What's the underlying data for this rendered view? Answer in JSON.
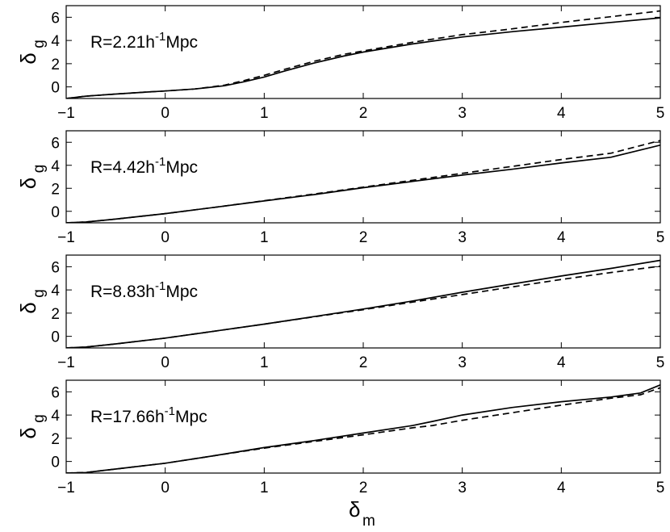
{
  "chart_data": {
    "type": "line",
    "xlabel": "δ_m",
    "panels": [
      {
        "annotation": "R=2.21h^{-1}Mpc",
        "ylabel": "δ_g",
        "xlim": [
          -1,
          5
        ],
        "ylim": [
          -1,
          7
        ],
        "xticks": [
          -1,
          0,
          1,
          2,
          3,
          4,
          5
        ],
        "yticks": [
          0,
          2,
          4,
          6
        ],
        "series": [
          {
            "style": "solid",
            "x": [
              -1,
              -0.8,
              -0.5,
              -0.2,
              0,
              0.3,
              0.6,
              0.8,
              1.0,
              1.2,
              1.5,
              1.8,
              2.0,
              2.5,
              3.0,
              3.5,
              4.0,
              4.5,
              5.0
            ],
            "y": [
              -1,
              -0.8,
              -0.62,
              -0.45,
              -0.35,
              -0.18,
              0.1,
              0.45,
              0.85,
              1.35,
              2.05,
              2.65,
              3.0,
              3.7,
              4.3,
              4.75,
              5.15,
              5.55,
              5.95
            ]
          },
          {
            "style": "dashed",
            "x": [
              -1,
              -0.8,
              -0.5,
              -0.2,
              0,
              0.3,
              0.6,
              0.8,
              1.0,
              1.2,
              1.5,
              1.8,
              2.0,
              2.5,
              3.0,
              3.5,
              4.0,
              4.5,
              5.0
            ],
            "y": [
              -1,
              -0.8,
              -0.62,
              -0.45,
              -0.35,
              -0.18,
              0.15,
              0.55,
              1.0,
              1.5,
              2.2,
              2.8,
              3.1,
              3.85,
              4.5,
              5.0,
              5.55,
              6.05,
              6.55
            ]
          }
        ]
      },
      {
        "annotation": "R=4.42h^{-1}Mpc",
        "ylabel": "δ_g",
        "xlim": [
          -1,
          5
        ],
        "ylim": [
          -1,
          7
        ],
        "xticks": [
          -1,
          0,
          1,
          2,
          3,
          4,
          5
        ],
        "yticks": [
          0,
          2,
          4,
          6
        ],
        "series": [
          {
            "style": "solid",
            "x": [
              -1,
              -0.8,
              -0.5,
              0,
              0.5,
              1.0,
              1.5,
              2.0,
              2.5,
              3.0,
              3.5,
              4.0,
              4.5,
              5.0
            ],
            "y": [
              -1,
              -0.93,
              -0.68,
              -0.2,
              0.35,
              0.9,
              1.45,
              2.05,
              2.6,
              3.15,
              3.65,
              4.2,
              4.7,
              5.75
            ]
          },
          {
            "style": "dashed",
            "x": [
              -1,
              -0.8,
              -0.5,
              0,
              0.5,
              1.0,
              1.5,
              2.0,
              2.5,
              3.0,
              3.5,
              4.0,
              4.5,
              5.0
            ],
            "y": [
              -1,
              -0.93,
              -0.68,
              -0.2,
              0.35,
              0.92,
              1.5,
              2.1,
              2.7,
              3.3,
              3.9,
              4.5,
              5.05,
              6.15
            ]
          }
        ]
      },
      {
        "annotation": "R=8.83h^{-1}Mpc",
        "ylabel": "δ_g",
        "xlim": [
          -1,
          5
        ],
        "ylim": [
          -1,
          7
        ],
        "xticks": [
          -1,
          0,
          1,
          2,
          3,
          4,
          5
        ],
        "yticks": [
          0,
          2,
          4,
          6
        ],
        "series": [
          {
            "style": "solid",
            "x": [
              -1,
              -0.8,
              -0.5,
              0,
              0.5,
              1.0,
              1.5,
              2.0,
              2.5,
              3.0,
              3.5,
              4.0,
              4.5,
              5.0
            ],
            "y": [
              -1,
              -0.92,
              -0.65,
              -0.15,
              0.45,
              1.05,
              1.7,
              2.35,
              3.05,
              3.8,
              4.5,
              5.2,
              5.85,
              6.55
            ]
          },
          {
            "style": "dashed",
            "x": [
              -1,
              -0.8,
              -0.5,
              0,
              0.5,
              1.0,
              1.5,
              2.0,
              2.5,
              3.0,
              3.5,
              4.0,
              4.5,
              5.0
            ],
            "y": [
              -1,
              -0.92,
              -0.65,
              -0.15,
              0.45,
              1.05,
              1.68,
              2.3,
              2.95,
              3.6,
              4.25,
              4.9,
              5.5,
              6.05
            ]
          }
        ]
      },
      {
        "annotation": "R=17.66h^{-1}Mpc",
        "ylabel": "δ_g",
        "xlim": [
          -1,
          5
        ],
        "ylim": [
          -1,
          7
        ],
        "xticks": [
          -1,
          0,
          1,
          2,
          3,
          4,
          5
        ],
        "yticks": [
          0,
          2,
          4,
          6
        ],
        "series": [
          {
            "style": "solid",
            "x": [
              -1,
              -0.8,
              -0.5,
              0,
              0.5,
              1.0,
              1.5,
              2.0,
              2.5,
              2.7,
              3.0,
              3.5,
              4.0,
              4.5,
              4.8,
              5.0
            ],
            "y": [
              -1,
              -0.95,
              -0.65,
              -0.15,
              0.5,
              1.2,
              1.8,
              2.45,
              3.1,
              3.45,
              4.0,
              4.65,
              5.15,
              5.55,
              5.9,
              6.6
            ]
          },
          {
            "style": "dashed",
            "x": [
              -1,
              -0.8,
              -0.5,
              0,
              0.5,
              1.0,
              1.5,
              2.0,
              2.5,
              2.7,
              3.0,
              3.5,
              4.0,
              4.5,
              4.8,
              5.0
            ],
            "y": [
              -1,
              -0.95,
              -0.65,
              -0.15,
              0.5,
              1.15,
              1.72,
              2.3,
              2.9,
              3.1,
              3.55,
              4.2,
              4.85,
              5.45,
              5.75,
              6.35
            ]
          }
        ]
      }
    ]
  }
}
